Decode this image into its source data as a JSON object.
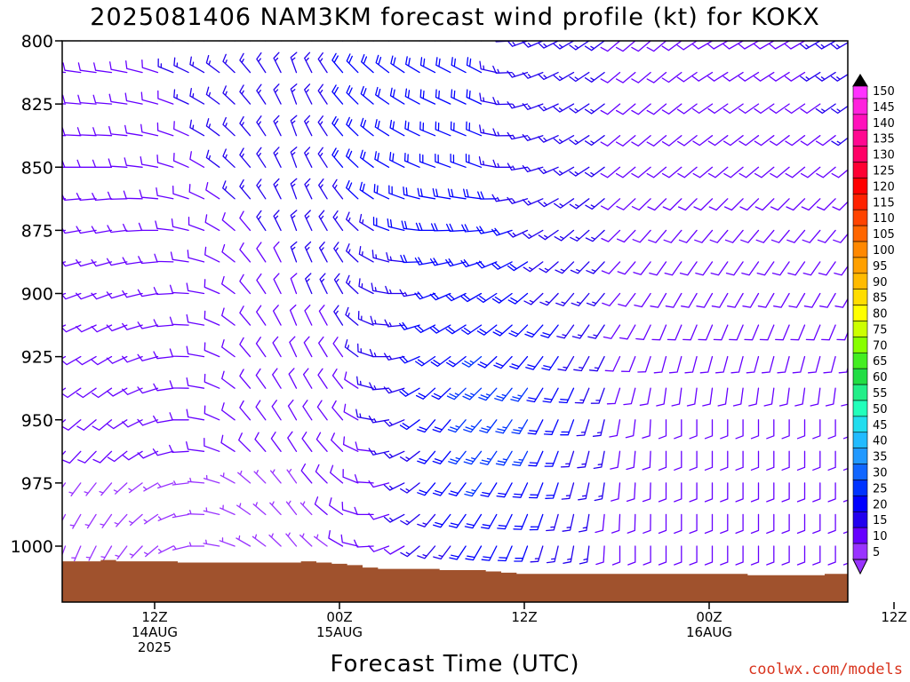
{
  "title": "2025081406 NAM3KM forecast wind profile (kt) for KOKX",
  "credit": "coolwx.com/models",
  "chart_data": {
    "type": "wind-barb-profile",
    "title": "2025081406 NAM3KM forecast wind profile (kt) for KOKX",
    "xlabel": "Forecast Time (UTC)",
    "ylabel": "",
    "x_unit": "forecast hour from 2025081406",
    "xlim": [
      0,
      51
    ],
    "y_ticks": [
      800,
      825,
      850,
      875,
      900,
      925,
      950,
      975,
      1000
    ],
    "ylim": [
      800,
      1022
    ],
    "x_ticks": [
      {
        "hour": 6,
        "lines": [
          "12Z",
          "14AUG",
          "2025"
        ]
      },
      {
        "hour": 18,
        "lines": [
          "00Z",
          "15AUG"
        ]
      },
      {
        "hour": 30,
        "lines": [
          "12Z"
        ]
      },
      {
        "hour": 42,
        "lines": [
          "00Z",
          "16AUG"
        ]
      },
      {
        "hour": 54,
        "lines": [
          "12Z"
        ]
      }
    ],
    "colorbar": {
      "unit": "kt",
      "labels": [
        150,
        145,
        140,
        135,
        130,
        125,
        120,
        115,
        110,
        105,
        100,
        95,
        90,
        85,
        80,
        75,
        70,
        65,
        60,
        55,
        50,
        45,
        40,
        35,
        30,
        25,
        20,
        15,
        10,
        5
      ],
      "colors": [
        "#ff33ff",
        "#ff22dd",
        "#ff10bb",
        "#ff0890",
        "#ff0066",
        "#ff0033",
        "#ff0000",
        "#ff2200",
        "#ff4400",
        "#ff6600",
        "#ff8800",
        "#ffa000",
        "#ffbb00",
        "#ffdd00",
        "#ffff00",
        "#ccff00",
        "#88ff00",
        "#44ee22",
        "#22dd44",
        "#22ee88",
        "#22ffbb",
        "#22ddee",
        "#22bbff",
        "#2299ff",
        "#1166ff",
        "#0033ff",
        "#0000ff",
        "#2200ee",
        "#6600ff",
        "#9933ff"
      ]
    },
    "surface_pressure_hpa": [
      1006,
      1006,
      1006,
      1005.5,
      1006,
      1006,
      1006,
      1006,
      1006.5,
      1006.5,
      1006.5,
      1006.5,
      1006.5,
      1006.5,
      1006.5,
      1006.5,
      1006,
      1006.5,
      1007,
      1007.5,
      1008.5,
      1009,
      1009,
      1009,
      1009,
      1009.5,
      1009.5,
      1009.5,
      1010,
      1010.5,
      1011,
      1011,
      1011,
      1011,
      1011,
      1011,
      1011,
      1011,
      1011,
      1011,
      1011,
      1011,
      1011,
      1011,
      1011,
      1011.5,
      1011.5,
      1011.5,
      1011.5,
      1011.5,
      1011,
      1011
    ],
    "wind_barbs": {
      "levels_hpa": [
        800,
        812.5,
        825,
        837.5,
        850,
        862.5,
        875,
        887.5,
        900,
        912.5,
        925,
        937.5,
        950,
        962.5,
        975,
        987.5,
        1000
      ],
      "note_dir_deg": "meteorological direction wind blows from",
      "hours_sample": [
        0,
        3,
        6,
        9,
        12,
        15,
        18,
        21,
        24,
        27,
        30,
        33,
        36,
        39,
        42,
        45,
        48,
        51
      ],
      "speed_kt_by_level": {
        "800": [
          12,
          12,
          12,
          14,
          14,
          16,
          18,
          20,
          20,
          18,
          16,
          14,
          12,
          12,
          12,
          12,
          12,
          14
        ],
        "850": [
          12,
          12,
          12,
          12,
          14,
          16,
          18,
          20,
          18,
          18,
          16,
          14,
          12,
          12,
          12,
          12,
          12,
          12
        ],
        "900": [
          10,
          10,
          10,
          10,
          10,
          12,
          14,
          16,
          18,
          20,
          18,
          16,
          12,
          10,
          10,
          10,
          10,
          10
        ],
        "950": [
          8,
          8,
          8,
          8,
          8,
          8,
          10,
          14,
          20,
          26,
          24,
          18,
          12,
          10,
          10,
          10,
          10,
          10
        ],
        "1000": [
          6,
          6,
          6,
          6,
          6,
          6,
          8,
          10,
          16,
          20,
          18,
          14,
          10,
          8,
          10,
          10,
          8,
          8
        ]
      },
      "dir_deg_by_level": {
        "800": [
          280,
          280,
          290,
          300,
          320,
          340,
          320,
          310,
          300,
          300,
          250,
          240,
          230,
          230,
          240,
          240,
          240,
          240
        ],
        "850": [
          270,
          270,
          280,
          300,
          320,
          340,
          320,
          300,
          290,
          290,
          260,
          240,
          230,
          230,
          230,
          230,
          230,
          230
        ],
        "900": [
          250,
          250,
          260,
          280,
          320,
          340,
          330,
          280,
          250,
          240,
          230,
          220,
          220,
          210,
          210,
          210,
          210,
          210
        ],
        "950": [
          230,
          230,
          250,
          280,
          320,
          330,
          320,
          260,
          220,
          220,
          210,
          200,
          190,
          180,
          180,
          180,
          180,
          180
        ],
        "1000": [
          200,
          210,
          230,
          270,
          300,
          320,
          300,
          250,
          220,
          210,
          200,
          190,
          180,
          180,
          180,
          180,
          180,
          180
        ]
      }
    }
  }
}
